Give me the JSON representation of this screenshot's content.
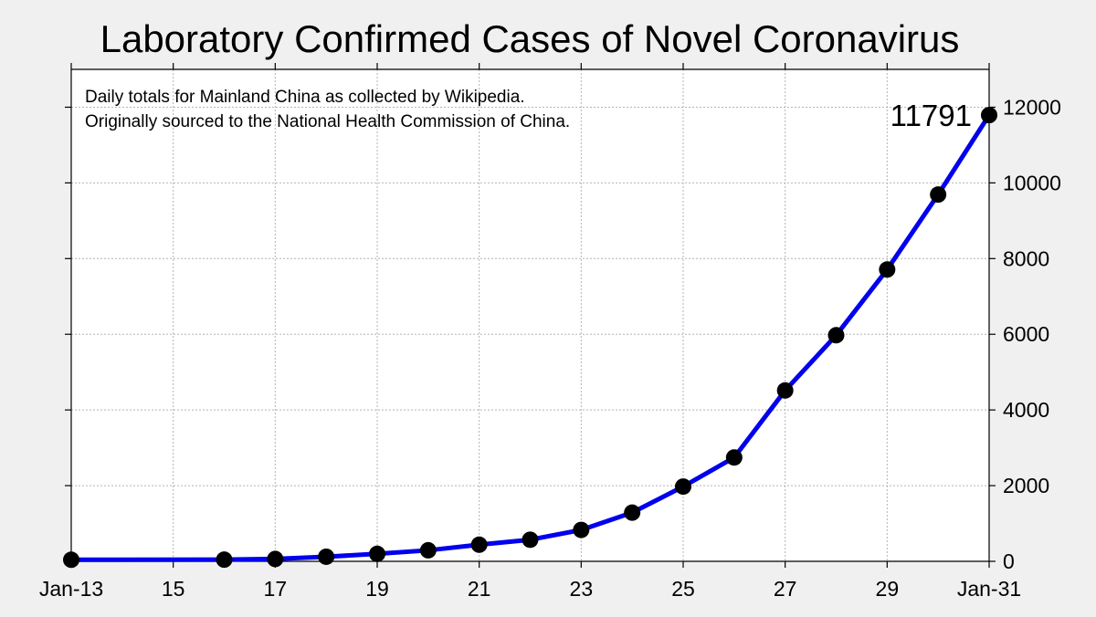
{
  "chart_data": {
    "type": "line",
    "title": "Laboratory Confirmed Cases of Novel Coronavirus",
    "annotation_lines": [
      "Daily totals for Mainland China as collected by Wikipedia.",
      "Originally sourced to the National Health Commission of China."
    ],
    "last_value_label": "11791",
    "x": [
      "Jan-13",
      "Jan-16",
      "Jan-17",
      "Jan-18",
      "Jan-19",
      "Jan-20",
      "Jan-21",
      "Jan-22",
      "Jan-23",
      "Jan-24",
      "Jan-25",
      "Jan-26",
      "Jan-27",
      "Jan-28",
      "Jan-29",
      "Jan-30",
      "Jan-31"
    ],
    "series": [
      {
        "values": [
          41,
          45,
          62,
          121,
          198,
          291,
          440,
          571,
          830,
          1287,
          1975,
          2744,
          4515,
          5974,
          7711,
          9692,
          11791
        ]
      }
    ],
    "xlim": [
      "Jan-13",
      "Jan-31"
    ],
    "ylim": [
      0,
      13000
    ],
    "x_ticks": [
      "Jan-13",
      "15",
      "17",
      "19",
      "21",
      "23",
      "25",
      "27",
      "29",
      "Jan-31"
    ],
    "y_ticks": [
      0,
      2000,
      4000,
      6000,
      8000,
      10000,
      12000
    ],
    "y_axis_side": "right",
    "grid": true,
    "colors": {
      "line": "#0000ee",
      "marker": "#000000",
      "plot_background": "#ffffff",
      "page_background": "#f0f0f0"
    }
  }
}
